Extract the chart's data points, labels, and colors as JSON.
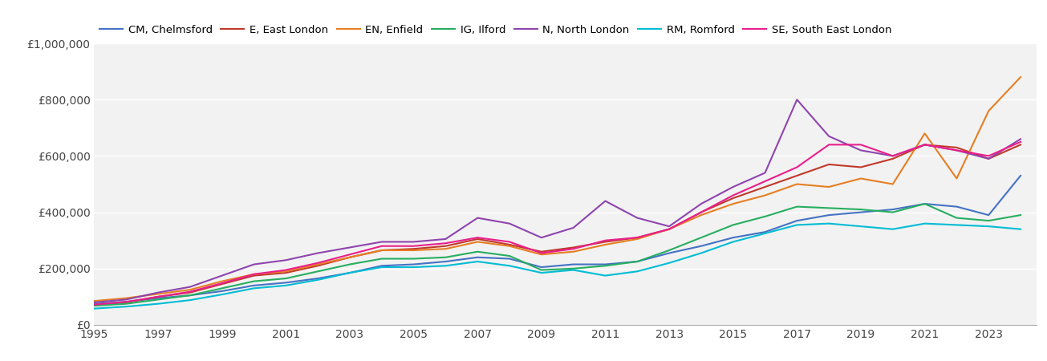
{
  "years": [
    1995,
    1996,
    1997,
    1998,
    1999,
    2000,
    2001,
    2002,
    2003,
    2004,
    2005,
    2006,
    2007,
    2008,
    2009,
    2010,
    2011,
    2012,
    2013,
    2014,
    2015,
    2016,
    2017,
    2018,
    2019,
    2020,
    2021,
    2022,
    2023,
    2024
  ],
  "series": {
    "CM, Chelmsford": {
      "color": "#4472c4",
      "values": [
        75000,
        82000,
        95000,
        105000,
        120000,
        140000,
        150000,
        165000,
        185000,
        210000,
        215000,
        225000,
        240000,
        235000,
        205000,
        215000,
        215000,
        225000,
        255000,
        280000,
        310000,
        330000,
        370000,
        390000,
        400000,
        410000,
        430000,
        420000,
        390000,
        530000
      ]
    },
    "E, East London": {
      "color": "#c0392b",
      "values": [
        70000,
        80000,
        100000,
        115000,
        145000,
        175000,
        185000,
        210000,
        240000,
        265000,
        270000,
        280000,
        305000,
        285000,
        260000,
        275000,
        295000,
        310000,
        340000,
        400000,
        450000,
        490000,
        530000,
        570000,
        560000,
        590000,
        640000,
        630000,
        590000,
        640000
      ]
    },
    "EN, Enfield": {
      "color": "#e67e22",
      "values": [
        85000,
        95000,
        110000,
        125000,
        155000,
        180000,
        190000,
        215000,
        240000,
        265000,
        265000,
        270000,
        295000,
        280000,
        250000,
        260000,
        285000,
        305000,
        340000,
        390000,
        430000,
        460000,
        500000,
        490000,
        520000,
        500000,
        680000,
        520000,
        760000,
        880000
      ]
    },
    "IG, Ilford": {
      "color": "#27ae60",
      "values": [
        68000,
        75000,
        90000,
        105000,
        130000,
        155000,
        165000,
        190000,
        215000,
        235000,
        235000,
        240000,
        260000,
        245000,
        195000,
        200000,
        210000,
        225000,
        265000,
        310000,
        355000,
        385000,
        420000,
        415000,
        410000,
        400000,
        430000,
        380000,
        370000,
        390000
      ]
    },
    "N, North London": {
      "color": "#8e44ad",
      "values": [
        80000,
        90000,
        115000,
        135000,
        175000,
        215000,
        230000,
        255000,
        275000,
        295000,
        295000,
        305000,
        380000,
        360000,
        310000,
        345000,
        440000,
        380000,
        350000,
        430000,
        490000,
        540000,
        800000,
        670000,
        620000,
        600000,
        640000,
        620000,
        590000,
        660000
      ]
    },
    "RM, Romford": {
      "color": "#00bcd4",
      "values": [
        58000,
        65000,
        75000,
        88000,
        108000,
        130000,
        140000,
        160000,
        185000,
        205000,
        205000,
        210000,
        225000,
        210000,
        185000,
        195000,
        175000,
        190000,
        220000,
        255000,
        295000,
        325000,
        355000,
        360000,
        350000,
        340000,
        360000,
        355000,
        350000,
        340000
      ]
    },
    "SE, South East London": {
      "color": "#e91e8c",
      "values": [
        72000,
        82000,
        100000,
        118000,
        148000,
        180000,
        195000,
        220000,
        250000,
        280000,
        280000,
        290000,
        310000,
        295000,
        255000,
        270000,
        300000,
        310000,
        340000,
        400000,
        460000,
        510000,
        560000,
        640000,
        640000,
        600000,
        640000,
        620000,
        600000,
        650000
      ]
    }
  },
  "ylim": [
    0,
    1000000
  ],
  "yticks": [
    0,
    200000,
    400000,
    600000,
    800000,
    1000000
  ],
  "xlim": [
    1995,
    2024.5
  ],
  "xticks": [
    1995,
    1997,
    1999,
    2001,
    2003,
    2005,
    2007,
    2009,
    2011,
    2013,
    2015,
    2017,
    2019,
    2021,
    2023
  ],
  "background_color": "#ffffff",
  "plot_bg_color": "#f2f2f2",
  "grid_color": "#ffffff",
  "fig_width": 13.05,
  "fig_height": 4.5,
  "dpi": 100,
  "legend_fontsize": 9.5,
  "tick_fontsize": 10
}
